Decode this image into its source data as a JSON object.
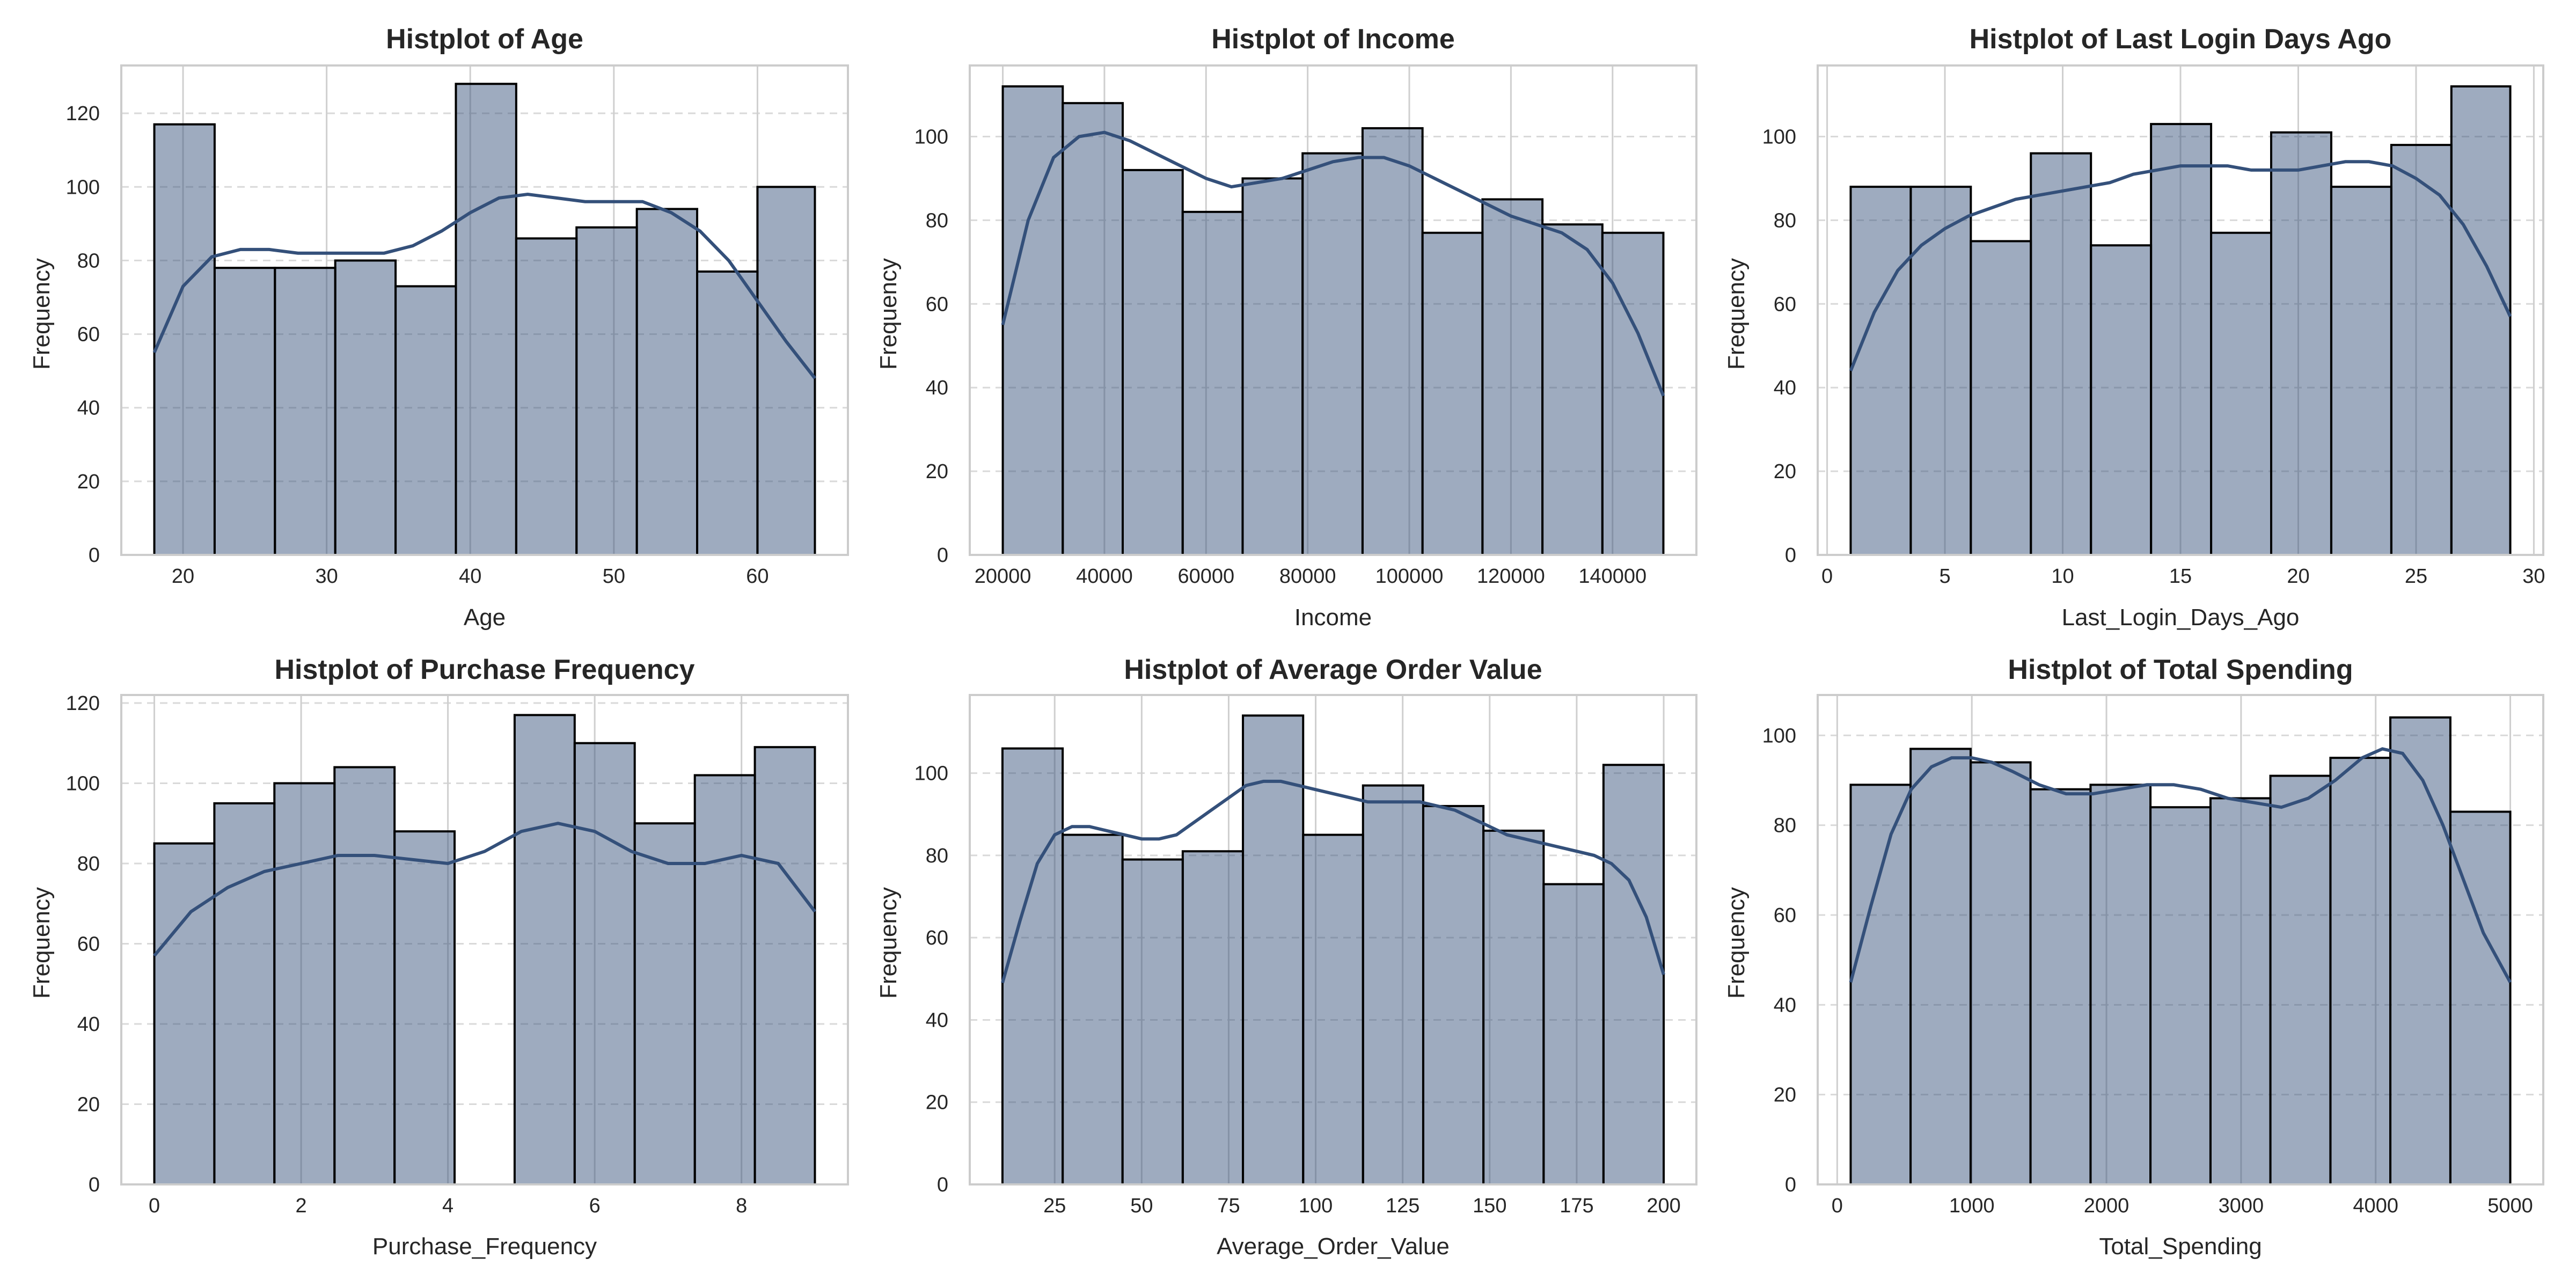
{
  "chart_data": [
    {
      "type": "histogram",
      "title": "Histplot of Age",
      "xlabel": "Age",
      "ylabel": "Frequency",
      "xlim": [
        15.7,
        66.3
      ],
      "ylim": [
        0,
        133
      ],
      "xticks": [
        20,
        30,
        40,
        50,
        60
      ],
      "yticks": [
        0,
        20,
        40,
        60,
        80,
        100,
        120
      ],
      "bins": [
        {
          "x0": 18.0,
          "x1": 22.2,
          "count": 117
        },
        {
          "x0": 22.2,
          "x1": 26.4,
          "count": 78
        },
        {
          "x0": 26.4,
          "x1": 30.6,
          "count": 78
        },
        {
          "x0": 30.6,
          "x1": 34.8,
          "count": 80
        },
        {
          "x0": 34.8,
          "x1": 39.0,
          "count": 73
        },
        {
          "x0": 39.0,
          "x1": 43.2,
          "count": 128
        },
        {
          "x0": 43.2,
          "x1": 47.4,
          "count": 86
        },
        {
          "x0": 47.4,
          "x1": 51.6,
          "count": 89
        },
        {
          "x0": 51.6,
          "x1": 55.8,
          "count": 94
        },
        {
          "x0": 55.8,
          "x1": 60.0,
          "count": 77
        },
        {
          "x0": 60.0,
          "x1": 64.0,
          "count": 100
        }
      ],
      "kde": {
        "x": [
          18,
          20,
          22,
          24,
          26,
          28,
          30,
          32,
          34,
          36,
          38,
          40,
          42,
          44,
          46,
          48,
          50,
          52,
          54,
          56,
          58,
          60,
          62,
          64
        ],
        "y": [
          55,
          73,
          81,
          83,
          83,
          82,
          82,
          82,
          82,
          84,
          88,
          93,
          97,
          98,
          97,
          96,
          96,
          96,
          93,
          88,
          80,
          69,
          58,
          48
        ]
      }
    },
    {
      "type": "histogram",
      "title": "Histplot of Income",
      "xlabel": "Income",
      "ylabel": "Frequency",
      "xlim": [
        13500,
        156500
      ],
      "ylim": [
        0,
        117
      ],
      "xticks": [
        20000,
        40000,
        60000,
        80000,
        100000,
        120000,
        140000
      ],
      "yticks": [
        0,
        20,
        40,
        60,
        80,
        100
      ],
      "bins": [
        {
          "x0": 20000,
          "x1": 31800,
          "count": 112
        },
        {
          "x0": 31800,
          "x1": 43600,
          "count": 108
        },
        {
          "x0": 43600,
          "x1": 55400,
          "count": 92
        },
        {
          "x0": 55400,
          "x1": 67200,
          "count": 82
        },
        {
          "x0": 67200,
          "x1": 79000,
          "count": 90
        },
        {
          "x0": 79000,
          "x1": 90800,
          "count": 96
        },
        {
          "x0": 90800,
          "x1": 102600,
          "count": 102
        },
        {
          "x0": 102600,
          "x1": 114400,
          "count": 77
        },
        {
          "x0": 114400,
          "x1": 126200,
          "count": 85
        },
        {
          "x0": 126200,
          "x1": 138000,
          "count": 79
        },
        {
          "x0": 138000,
          "x1": 150000,
          "count": 77
        }
      ],
      "kde": {
        "x": [
          20000,
          25000,
          30000,
          35000,
          40000,
          45000,
          50000,
          55000,
          60000,
          65000,
          70000,
          75000,
          80000,
          85000,
          90000,
          95000,
          100000,
          105000,
          110000,
          115000,
          120000,
          125000,
          130000,
          135000,
          140000,
          145000,
          150000
        ],
        "y": [
          55,
          80,
          95,
          100,
          101,
          99,
          96,
          93,
          90,
          88,
          89,
          90,
          92,
          94,
          95,
          95,
          93,
          90,
          87,
          84,
          81,
          79,
          77,
          73,
          65,
          53,
          38
        ]
      }
    },
    {
      "type": "histogram",
      "title": "Histplot of Last Login Days Ago",
      "xlabel": "Last_Login_Days_Ago",
      "ylabel": "Frequency",
      "xlim": [
        -0.4,
        30.4
      ],
      "ylim": [
        0,
        117
      ],
      "xticks": [
        0,
        5,
        10,
        15,
        20,
        25,
        30
      ],
      "yticks": [
        0,
        20,
        40,
        60,
        80,
        100
      ],
      "bins": [
        {
          "x0": 1.0,
          "x1": 3.55,
          "count": 88
        },
        {
          "x0": 3.55,
          "x1": 6.1,
          "count": 88
        },
        {
          "x0": 6.1,
          "x1": 8.65,
          "count": 75
        },
        {
          "x0": 8.65,
          "x1": 11.2,
          "count": 96
        },
        {
          "x0": 11.2,
          "x1": 13.75,
          "count": 74
        },
        {
          "x0": 13.75,
          "x1": 16.3,
          "count": 103
        },
        {
          "x0": 16.3,
          "x1": 18.85,
          "count": 77
        },
        {
          "x0": 18.85,
          "x1": 21.4,
          "count": 101
        },
        {
          "x0": 21.4,
          "x1": 23.95,
          "count": 88
        },
        {
          "x0": 23.95,
          "x1": 26.5,
          "count": 98
        },
        {
          "x0": 26.5,
          "x1": 29.0,
          "count": 112
        }
      ],
      "kde": {
        "x": [
          1,
          2,
          3,
          4,
          5,
          6,
          7,
          8,
          9,
          10,
          11,
          12,
          13,
          14,
          15,
          16,
          17,
          18,
          19,
          20,
          21,
          22,
          23,
          24,
          25,
          26,
          27,
          28,
          29
        ],
        "y": [
          44,
          58,
          68,
          74,
          78,
          81,
          83,
          85,
          86,
          87,
          88,
          89,
          91,
          92,
          93,
          93,
          93,
          92,
          92,
          92,
          93,
          94,
          94,
          93,
          90,
          86,
          79,
          69,
          57
        ]
      }
    },
    {
      "type": "histogram",
      "title": "Histplot of Purchase Frequency",
      "xlabel": "Purchase_Frequency",
      "ylabel": "Frequency",
      "xlim": [
        -0.45,
        9.45
      ],
      "ylim": [
        0,
        122
      ],
      "xticks": [
        0,
        2,
        4,
        6,
        8
      ],
      "yticks": [
        0,
        20,
        40,
        60,
        80,
        100,
        120
      ],
      "bins": [
        {
          "x0": 0.0,
          "x1": 0.818,
          "count": 85
        },
        {
          "x0": 0.818,
          "x1": 1.636,
          "count": 95
        },
        {
          "x0": 1.636,
          "x1": 2.455,
          "count": 100
        },
        {
          "x0": 2.455,
          "x1": 3.273,
          "count": 104
        },
        {
          "x0": 3.273,
          "x1": 4.091,
          "count": 88
        },
        {
          "x0": 4.091,
          "x1": 4.909,
          "count": 0
        },
        {
          "x0": 4.909,
          "x1": 5.727,
          "count": 117
        },
        {
          "x0": 5.727,
          "x1": 6.545,
          "count": 110
        },
        {
          "x0": 6.545,
          "x1": 7.364,
          "count": 90
        },
        {
          "x0": 7.364,
          "x1": 8.182,
          "count": 102
        },
        {
          "x0": 8.182,
          "x1": 9.0,
          "count": 109
        }
      ],
      "kde": {
        "x": [
          0,
          0.5,
          1,
          1.5,
          2,
          2.5,
          3,
          3.5,
          4,
          4.5,
          5,
          5.5,
          6,
          6.5,
          7,
          7.5,
          8,
          8.5,
          9
        ],
        "y": [
          57,
          68,
          74,
          78,
          80,
          82,
          82,
          81,
          80,
          83,
          88,
          90,
          88,
          83,
          80,
          80,
          82,
          80,
          68
        ]
      }
    },
    {
      "type": "histogram",
      "title": "Histplot of Average Order Value",
      "xlabel": "Average_Order_Value",
      "ylabel": "Frequency",
      "xlim": [
        0.6,
        209.4
      ],
      "ylim": [
        0,
        119
      ],
      "xticks": [
        25,
        50,
        75,
        100,
        125,
        150,
        175,
        200
      ],
      "yticks": [
        0,
        20,
        40,
        60,
        80,
        100
      ],
      "bins": [
        {
          "x0": 10.0,
          "x1": 27.3,
          "count": 106
        },
        {
          "x0": 27.3,
          "x1": 44.5,
          "count": 85
        },
        {
          "x0": 44.5,
          "x1": 61.8,
          "count": 79
        },
        {
          "x0": 61.8,
          "x1": 79.1,
          "count": 81
        },
        {
          "x0": 79.1,
          "x1": 96.4,
          "count": 114
        },
        {
          "x0": 96.4,
          "x1": 113.6,
          "count": 85
        },
        {
          "x0": 113.6,
          "x1": 130.9,
          "count": 97
        },
        {
          "x0": 130.9,
          "x1": 148.2,
          "count": 92
        },
        {
          "x0": 148.2,
          "x1": 165.5,
          "count": 86
        },
        {
          "x0": 165.5,
          "x1": 182.7,
          "count": 73
        },
        {
          "x0": 182.7,
          "x1": 200.0,
          "count": 102
        }
      ],
      "kde": {
        "x": [
          10,
          15,
          20,
          25,
          30,
          35,
          40,
          45,
          50,
          55,
          60,
          65,
          70,
          75,
          80,
          85,
          90,
          95,
          100,
          105,
          110,
          115,
          120,
          125,
          130,
          135,
          140,
          145,
          150,
          155,
          160,
          165,
          170,
          175,
          180,
          185,
          190,
          195,
          200
        ],
        "y": [
          49,
          64,
          78,
          85,
          87,
          87,
          86,
          85,
          84,
          84,
          85,
          88,
          91,
          94,
          97,
          98,
          98,
          97,
          96,
          95,
          94,
          93,
          93,
          93,
          93,
          92,
          91,
          89,
          87,
          85,
          84,
          83,
          82,
          81,
          80,
          78,
          74,
          65,
          51
        ]
      }
    },
    {
      "type": "histogram",
      "title": "Histplot of Total Spending",
      "xlabel": "Total_Spending",
      "ylabel": "Frequency",
      "xlim": [
        -145,
        5245
      ],
      "ylim": [
        0,
        109
      ],
      "xticks": [
        0,
        1000,
        2000,
        3000,
        4000,
        5000
      ],
      "yticks": [
        0,
        20,
        40,
        60,
        80,
        100
      ],
      "bins": [
        {
          "x0": 100,
          "x1": 545,
          "count": 89
        },
        {
          "x0": 545,
          "x1": 991,
          "count": 97
        },
        {
          "x0": 991,
          "x1": 1436,
          "count": 94
        },
        {
          "x0": 1436,
          "x1": 1882,
          "count": 88
        },
        {
          "x0": 1882,
          "x1": 2327,
          "count": 89
        },
        {
          "x0": 2327,
          "x1": 2773,
          "count": 84
        },
        {
          "x0": 2773,
          "x1": 3218,
          "count": 86
        },
        {
          "x0": 3218,
          "x1": 3664,
          "count": 91
        },
        {
          "x0": 3664,
          "x1": 4109,
          "count": 95
        },
        {
          "x0": 4109,
          "x1": 4555,
          "count": 104
        },
        {
          "x0": 4555,
          "x1": 5000,
          "count": 83
        }
      ],
      "kde": {
        "x": [
          100,
          250,
          400,
          550,
          700,
          850,
          1000,
          1150,
          1300,
          1500,
          1700,
          1900,
          2100,
          2300,
          2500,
          2700,
          2900,
          3100,
          3300,
          3500,
          3700,
          3900,
          4050,
          4200,
          4350,
          4500,
          4650,
          4800,
          5000
        ],
        "y": [
          45,
          62,
          78,
          88,
          93,
          95,
          95,
          94,
          92,
          89,
          87,
          87,
          88,
          89,
          89,
          88,
          86,
          85,
          84,
          86,
          90,
          95,
          97,
          96,
          90,
          80,
          68,
          56,
          45
        ]
      }
    }
  ]
}
